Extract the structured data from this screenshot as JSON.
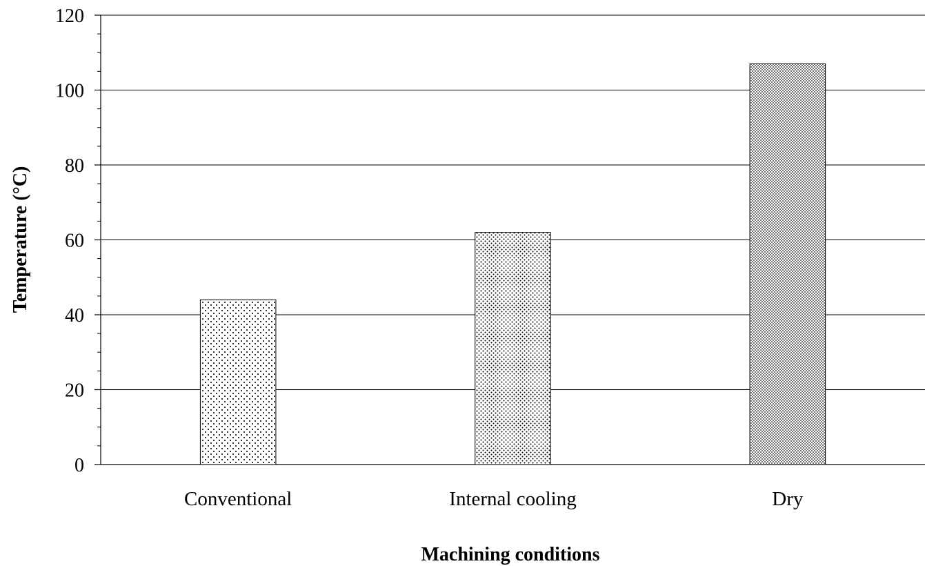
{
  "chart_data": {
    "type": "bar",
    "categories": [
      "Conventional",
      "Internal cooling",
      "Dry"
    ],
    "values": [
      44,
      62,
      107
    ],
    "xlabel": "Machining conditions",
    "ylabel": "Temperature (°C)",
    "ylim": [
      0,
      120
    ],
    "y_major_ticks": [
      0,
      20,
      40,
      60,
      80,
      100,
      120
    ],
    "y_minor_step": 5,
    "grid": true,
    "legend": "none",
    "bar_fill": "dotted pattern (increasing density)",
    "colors": {
      "bar_dots": "#000000",
      "bar_bg": "#ffffff",
      "grid": "#000000"
    }
  }
}
